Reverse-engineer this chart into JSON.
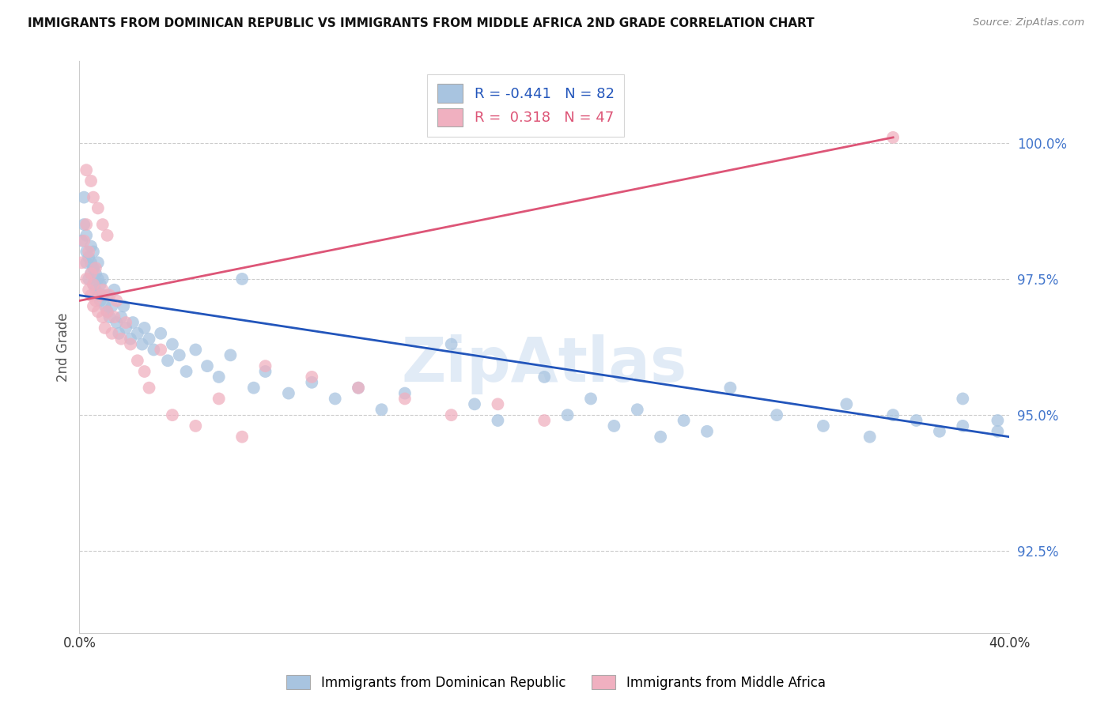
{
  "title": "IMMIGRANTS FROM DOMINICAN REPUBLIC VS IMMIGRANTS FROM MIDDLE AFRICA 2ND GRADE CORRELATION CHART",
  "source": "Source: ZipAtlas.com",
  "ylabel": "2nd Grade",
  "y_ticks": [
    92.5,
    95.0,
    97.5,
    100.0
  ],
  "y_tick_labels": [
    "92.5%",
    "95.0%",
    "97.5%",
    "100.0%"
  ],
  "xlim": [
    0.0,
    0.4
  ],
  "ylim": [
    91.0,
    101.5
  ],
  "blue_r": "-0.441",
  "blue_n": "82",
  "pink_r": "0.318",
  "pink_n": "47",
  "blue_color": "#a8c4e0",
  "pink_color": "#f0b0c0",
  "blue_line_color": "#2255bb",
  "pink_line_color": "#dd5577",
  "watermark": "ZipAtlas",
  "blue_line_x0": 0.0,
  "blue_line_y0": 97.2,
  "blue_line_x1": 0.4,
  "blue_line_y1": 94.6,
  "pink_line_x0": 0.0,
  "pink_line_y0": 97.1,
  "pink_line_x1": 0.35,
  "pink_line_y1": 100.1,
  "blue_scatter_x": [
    0.001,
    0.002,
    0.002,
    0.003,
    0.003,
    0.003,
    0.004,
    0.004,
    0.005,
    0.005,
    0.005,
    0.006,
    0.006,
    0.006,
    0.007,
    0.007,
    0.008,
    0.008,
    0.008,
    0.009,
    0.009,
    0.01,
    0.01,
    0.011,
    0.012,
    0.012,
    0.013,
    0.014,
    0.015,
    0.016,
    0.017,
    0.018,
    0.019,
    0.02,
    0.022,
    0.023,
    0.025,
    0.027,
    0.028,
    0.03,
    0.032,
    0.035,
    0.038,
    0.04,
    0.043,
    0.046,
    0.05,
    0.055,
    0.06,
    0.065,
    0.07,
    0.075,
    0.08,
    0.09,
    0.1,
    0.11,
    0.12,
    0.13,
    0.14,
    0.16,
    0.17,
    0.18,
    0.2,
    0.21,
    0.22,
    0.23,
    0.24,
    0.25,
    0.26,
    0.27,
    0.28,
    0.3,
    0.32,
    0.33,
    0.34,
    0.35,
    0.36,
    0.37,
    0.38,
    0.395,
    0.38,
    0.395
  ],
  "blue_scatter_y": [
    98.2,
    98.5,
    99.0,
    97.8,
    98.0,
    98.3,
    97.5,
    97.9,
    97.6,
    97.8,
    98.1,
    97.4,
    97.7,
    98.0,
    97.3,
    97.6,
    97.2,
    97.5,
    97.8,
    97.1,
    97.4,
    97.2,
    97.5,
    97.0,
    96.9,
    97.2,
    96.8,
    97.0,
    97.3,
    96.7,
    96.5,
    96.8,
    97.0,
    96.6,
    96.4,
    96.7,
    96.5,
    96.3,
    96.6,
    96.4,
    96.2,
    96.5,
    96.0,
    96.3,
    96.1,
    95.8,
    96.2,
    95.9,
    95.7,
    96.1,
    97.5,
    95.5,
    95.8,
    95.4,
    95.6,
    95.3,
    95.5,
    95.1,
    95.4,
    96.3,
    95.2,
    94.9,
    95.7,
    95.0,
    95.3,
    94.8,
    95.1,
    94.6,
    94.9,
    94.7,
    95.5,
    95.0,
    94.8,
    95.2,
    94.6,
    95.0,
    94.9,
    94.7,
    94.8,
    94.7,
    95.3,
    94.9
  ],
  "pink_scatter_x": [
    0.001,
    0.002,
    0.003,
    0.003,
    0.004,
    0.004,
    0.005,
    0.005,
    0.006,
    0.006,
    0.007,
    0.007,
    0.008,
    0.009,
    0.01,
    0.01,
    0.011,
    0.012,
    0.013,
    0.014,
    0.015,
    0.016,
    0.018,
    0.02,
    0.022,
    0.025,
    0.028,
    0.03,
    0.035,
    0.04,
    0.05,
    0.06,
    0.07,
    0.08,
    0.1,
    0.12,
    0.14,
    0.16,
    0.18,
    0.2,
    0.003,
    0.005,
    0.006,
    0.008,
    0.01,
    0.012,
    0.35
  ],
  "pink_scatter_y": [
    97.8,
    98.2,
    97.5,
    98.5,
    97.3,
    98.0,
    97.2,
    97.6,
    97.0,
    97.4,
    97.1,
    97.7,
    96.9,
    97.2,
    96.8,
    97.3,
    96.6,
    96.9,
    97.2,
    96.5,
    96.8,
    97.1,
    96.4,
    96.7,
    96.3,
    96.0,
    95.8,
    95.5,
    96.2,
    95.0,
    94.8,
    95.3,
    94.6,
    95.9,
    95.7,
    95.5,
    95.3,
    95.0,
    95.2,
    94.9,
    99.5,
    99.3,
    99.0,
    98.8,
    98.5,
    98.3,
    100.1
  ]
}
